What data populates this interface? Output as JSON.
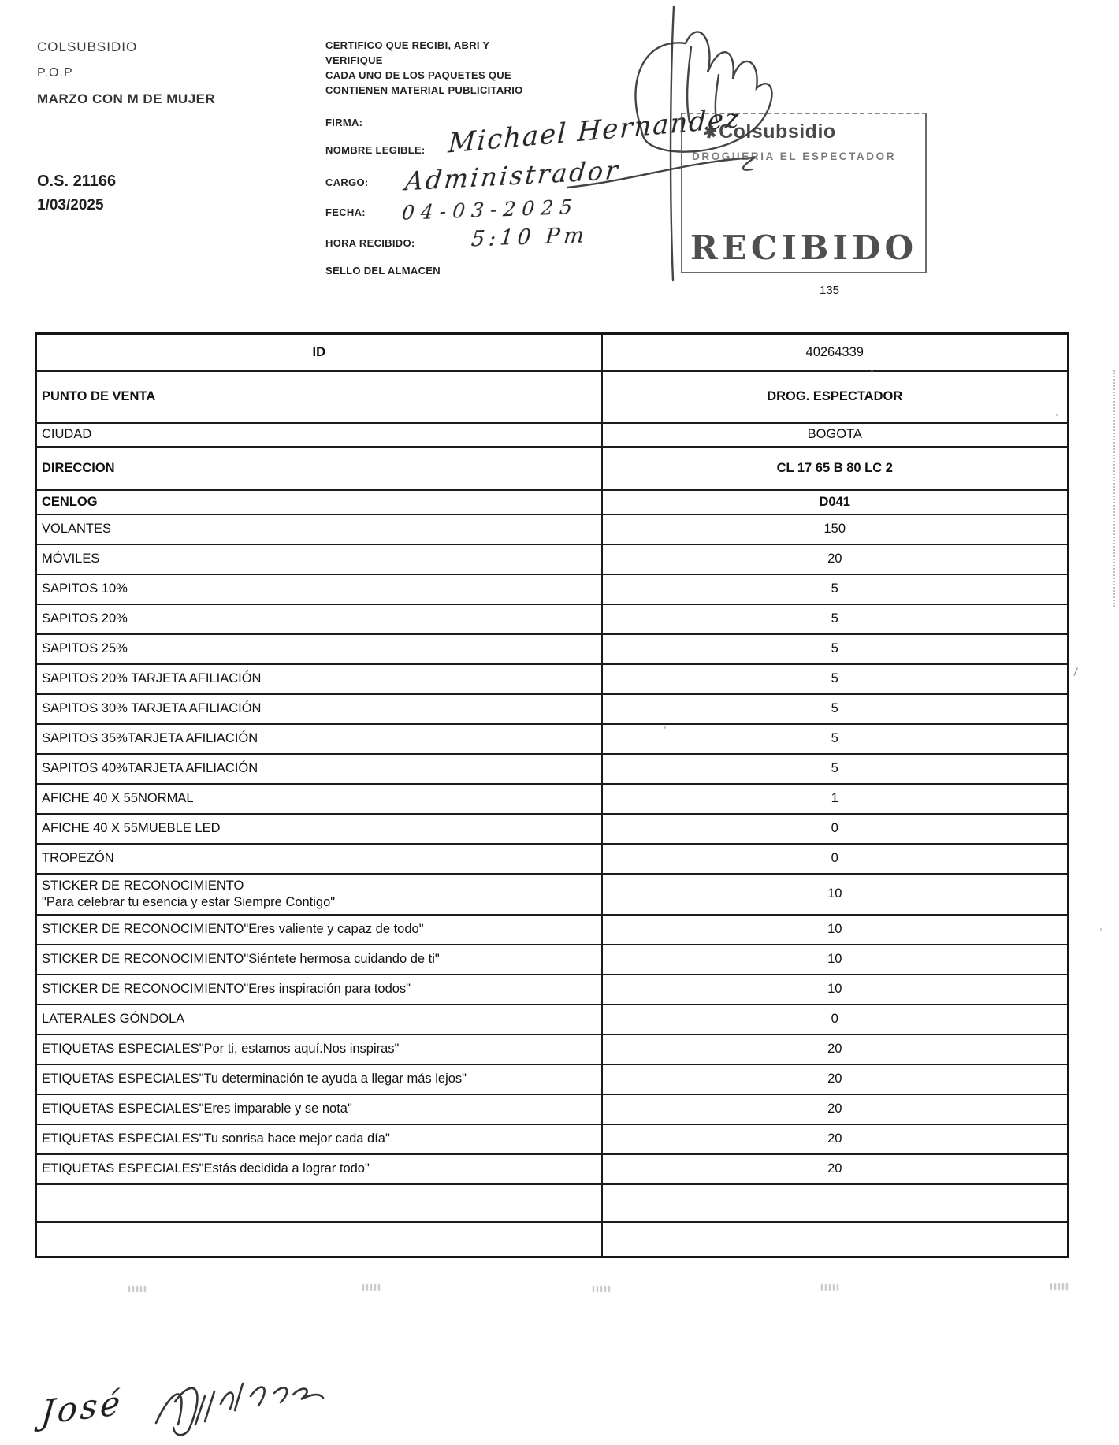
{
  "document": {
    "header_left": {
      "line1": "COLSUBSIDIO",
      "line2": "P.O.P",
      "line3": "MARZO CON M DE MUJER",
      "os_number": "O.S. 21166",
      "date": "1/03/2025"
    },
    "certification": {
      "statement_lines": [
        "CERTIFICO QUE RECIBI, ABRI Y",
        "VERIFIQUE",
        "CADA  UNO DE LOS PAQUETES QUE",
        "CONTIENEN MATERIAL PUBLICITARIO"
      ],
      "labels": [
        "FIRMA:",
        "NOMBRE LEGIBLE:",
        "CARGO:",
        "FECHA:",
        "HORA RECIBIDO:",
        "SELLO DEL ALMACEN"
      ]
    },
    "handwriting": {
      "nombre": "Michael Hernandez",
      "cargo": "Administrador",
      "fecha": "04-03-2025",
      "hora": "5:10 Pm"
    },
    "stamp": {
      "brand": "Colsubsidio",
      "store": "DROGUERIA EL ESPECTADOR",
      "status": "RECIBIDO",
      "logo_icon": "colsubsidio-flower-icon",
      "ink_color": "#4a4a4a"
    },
    "page_number": "135",
    "table": {
      "rows": [
        {
          "label": "ID",
          "value": "40264339",
          "center": true
        },
        {
          "label": "PUNTO DE VENTA",
          "value": "DROG. ESPECTADOR",
          "bold": true
        },
        {
          "label": "CIUDAD",
          "value": "BOGOTA"
        },
        {
          "label": "DIRECCION",
          "value": "CL 17 65 B 80 LC 2",
          "bold": true
        },
        {
          "label": "CENLOG",
          "value": "D041",
          "bold": true
        },
        {
          "label": "VOLANTES",
          "value": "150"
        },
        {
          "label": "MÓVILES",
          "value": "20"
        },
        {
          "label": "SAPITOS 10%",
          "value": "5"
        },
        {
          "label": "SAPITOS 20%",
          "value": "5"
        },
        {
          "label": "SAPITOS 25%",
          "value": "5"
        },
        {
          "label": "SAPITOS 20% TARJETA AFILIACIÓN",
          "value": "5"
        },
        {
          "label": "SAPITOS 30% TARJETA AFILIACIÓN",
          "value": "5"
        },
        {
          "label": "SAPITOS 35%TARJETA AFILIACIÓN",
          "value": "5"
        },
        {
          "label": "SAPITOS 40%TARJETA AFILIACIÓN",
          "value": "5"
        },
        {
          "label": "AFICHE 40 X 55NORMAL",
          "value": "1"
        },
        {
          "label": "AFICHE 40 X 55MUEBLE LED",
          "value": "0"
        },
        {
          "label": "TROPEZÓN",
          "value": "0"
        },
        {
          "label": "STICKER DE RECONOCIMIENTO\n\"Para celebrar tu esencia y estar Siempre Contigo\"",
          "value": "10"
        },
        {
          "label": "STICKER DE RECONOCIMIENTO\"Eres valiente y capaz de todo\"",
          "value": "10"
        },
        {
          "label": "STICKER DE RECONOCIMIENTO\"Siéntete hermosa cuidando de ti\"",
          "value": "10"
        },
        {
          "label": "STICKER DE RECONOCIMIENTO\"Eres inspiración para todos\"",
          "value": "10"
        },
        {
          "label": "LATERALES GÓNDOLA",
          "value": "0"
        },
        {
          "label": "ETIQUETAS ESPECIALES\"Por ti, estamos aquí.Nos inspiras\"",
          "value": "20"
        },
        {
          "label": "ETIQUETAS ESPECIALES\"Tu determinación te ayuda a llegar más lejos\"",
          "value": "20"
        },
        {
          "label": "ETIQUETAS ESPECIALES\"Eres imparable y se nota\"",
          "value": "20"
        },
        {
          "label": "ETIQUETAS ESPECIALES\"Tu sonrisa hace mejor cada día\"",
          "value": "20"
        },
        {
          "label": "ETIQUETAS ESPECIALES\"Estás decidida a lograr todo\"",
          "value": "20"
        },
        {
          "label": "",
          "value": ""
        },
        {
          "label": "",
          "value": ""
        }
      ]
    },
    "footer": {
      "signature": "José"
    }
  }
}
